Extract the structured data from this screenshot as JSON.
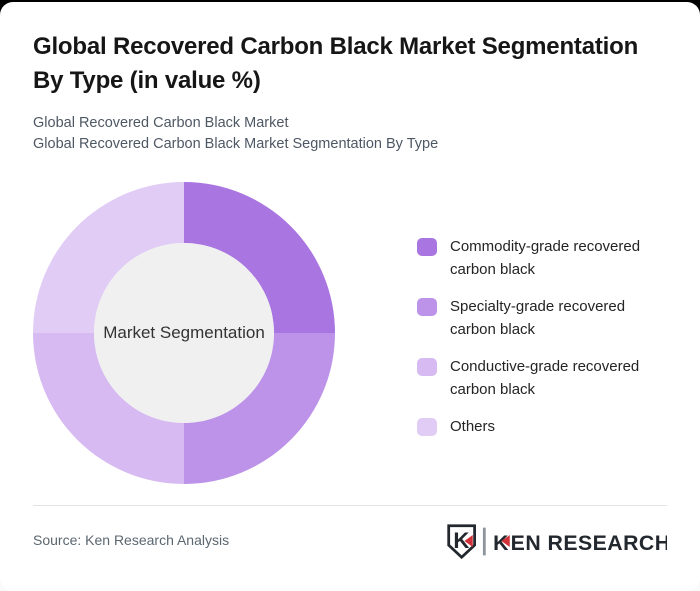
{
  "header": {
    "title_line1": "Global Recovered Carbon Black Market Segmentation",
    "title_line2": "By Type (in value %)",
    "subtitle_line1": "Global Recovered Carbon Black Market",
    "subtitle_line2": "Global Recovered Carbon Black Market Segmentation By Type"
  },
  "chart_data": {
    "type": "pie",
    "variant": "donut",
    "title": "Global Recovered Carbon Black Market Segmentation By Type (in value %)",
    "center_label": "Market Segmentation",
    "categories": [
      "Commodity-grade recovered carbon black",
      "Specialty-grade recovered carbon black",
      "Conductive-grade recovered carbon black",
      "Others"
    ],
    "values": [
      25,
      25,
      25,
      25
    ],
    "unit": "%",
    "colors": [
      "#a975e1",
      "#bc93e9",
      "#d6baf1",
      "#e1ccf5"
    ],
    "center_fill": "#f0f0f0",
    "start_angle_deg": 0,
    "direction": "clockwise",
    "legend_position": "right"
  },
  "footer": {
    "source": "Source: Ken Research Analysis",
    "logo": {
      "emblem_letter": "K",
      "brand_k": "K",
      "brand_rest": "EN RESEARCH",
      "accent_color": "#d13239",
      "text_color": "#23282e"
    }
  }
}
